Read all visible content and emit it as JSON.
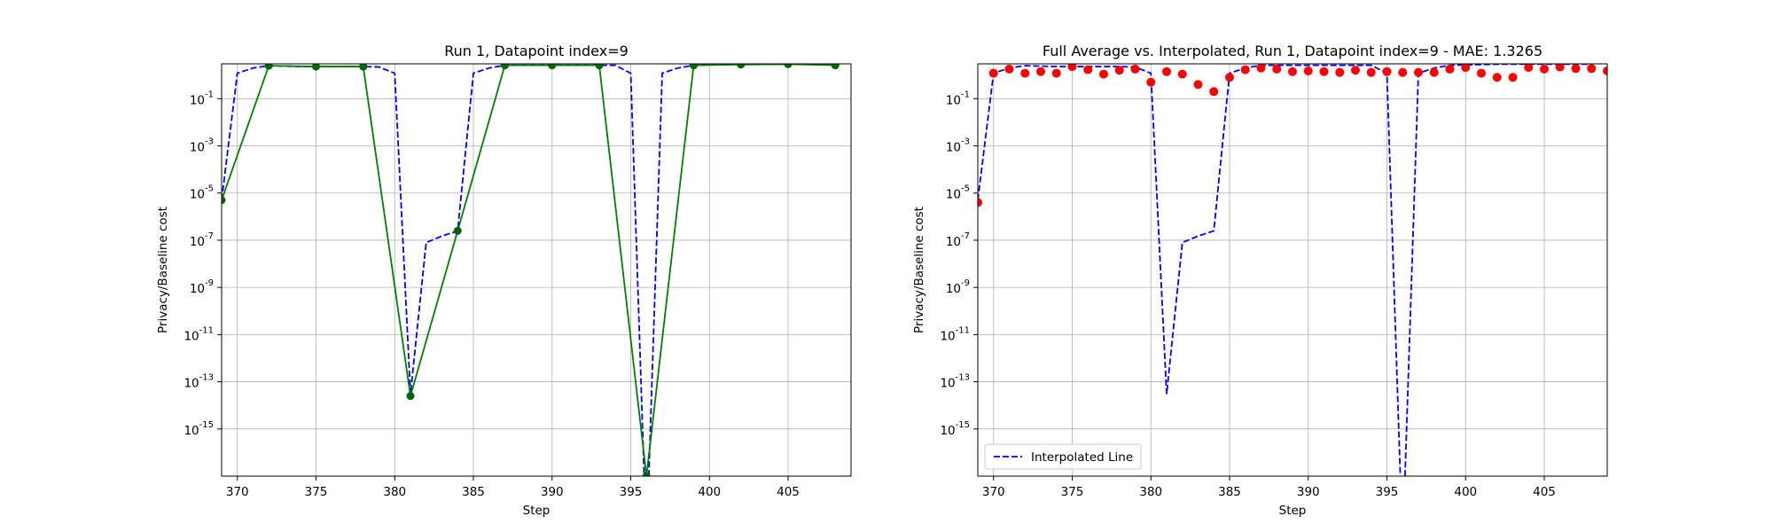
{
  "chart_data": [
    {
      "type": "line",
      "title": "Run 1, Datapoint index=9",
      "xlabel": "Step",
      "ylabel": "Privacy/Baseline cost",
      "yscale": "log",
      "xlim": [
        369,
        409
      ],
      "ylim": [
        1e-17,
        3
      ],
      "xticks": [
        370,
        375,
        380,
        385,
        390,
        395,
        400,
        405
      ],
      "xtick_labels": [
        "370",
        "375",
        "380",
        "385",
        "390",
        "395",
        "400",
        "405"
      ],
      "yticks": [
        1e-15,
        1e-13,
        1e-11,
        1e-09,
        1e-07,
        1e-05,
        0.001,
        0.1
      ],
      "ytick_labels": [
        "10^-15",
        "10^-13",
        "10^-11",
        "10^-9",
        "10^-7",
        "10^-5",
        "10^-3",
        "10^-1"
      ],
      "grid": true,
      "legend": "none",
      "series": [
        {
          "style": "dashed",
          "color": "#0000ff",
          "x": [
            369,
            370,
            371,
            372,
            373,
            374,
            375,
            376,
            377,
            378,
            379,
            380,
            381,
            382,
            383,
            384,
            385,
            386,
            387,
            388,
            389,
            390,
            391,
            392,
            393,
            394,
            395,
            396,
            397,
            398,
            399,
            400,
            401,
            402,
            403,
            404,
            405,
            406,
            407,
            408
          ],
          "y": [
            5e-06,
            1.2,
            2,
            2.5,
            2.4,
            2.3,
            2.3,
            2.3,
            2.3,
            2.3,
            2.2,
            1.2,
            3e-14,
            8e-08,
            1.5e-07,
            2.5e-07,
            1.2,
            2,
            2.6,
            2.6,
            2.6,
            2.6,
            2.6,
            2.6,
            2.6,
            2.6,
            1.2,
            1e-20,
            1.2,
            2,
            2.6,
            2.7,
            2.8,
            2.9,
            2.9,
            2.9,
            2.9,
            2.9,
            2.9,
            2.9
          ]
        },
        {
          "style": "solid",
          "marker": "circle",
          "color": "#008000",
          "marker_color": "#006400",
          "x": [
            369,
            372,
            375,
            378,
            381,
            384,
            387,
            390,
            393,
            396,
            399,
            402,
            405,
            408
          ],
          "y": [
            5e-06,
            2.5,
            2.3,
            2.3,
            2.5e-14,
            2.5e-07,
            2.6,
            2.6,
            2.6,
            1e-17,
            2.6,
            2.8,
            2.9,
            2.6
          ]
        }
      ]
    },
    {
      "type": "line",
      "title": "Full Average vs. Interpolated, Run 1, Datapoint index=9 - MAE: 1.3265",
      "xlabel": "Step",
      "ylabel": "Privacy/Baseline cost",
      "yscale": "log",
      "xlim": [
        369,
        409
      ],
      "ylim": [
        1e-17,
        3
      ],
      "xticks": [
        370,
        375,
        380,
        385,
        390,
        395,
        400,
        405
      ],
      "xtick_labels": [
        "370",
        "375",
        "380",
        "385",
        "390",
        "395",
        "400",
        "405"
      ],
      "yticks": [
        1e-15,
        1e-13,
        1e-11,
        1e-09,
        1e-07,
        1e-05,
        0.001,
        0.1
      ],
      "ytick_labels": [
        "10^-15",
        "10^-13",
        "10^-11",
        "10^-9",
        "10^-7",
        "10^-5",
        "10^-3",
        "10^-1"
      ],
      "grid": true,
      "legend": "lower left",
      "series": [
        {
          "name": "Interpolated Line",
          "style": "dashed",
          "color": "#0000ff",
          "x": [
            369,
            370,
            371,
            372,
            373,
            374,
            375,
            376,
            377,
            378,
            379,
            380,
            381,
            382,
            383,
            384,
            385,
            386,
            387,
            388,
            389,
            390,
            391,
            392,
            393,
            394,
            395,
            396,
            397,
            398,
            399,
            400,
            401,
            402,
            403,
            404,
            405,
            406,
            407,
            408
          ],
          "y": [
            5e-06,
            1.2,
            2,
            2.5,
            2.4,
            2.3,
            2.3,
            2.3,
            2.3,
            2.3,
            2.2,
            1.2,
            3e-14,
            8e-08,
            1.5e-07,
            2.5e-07,
            1.2,
            2,
            2.6,
            2.6,
            2.6,
            2.6,
            2.6,
            2.6,
            2.6,
            2.6,
            1.2,
            1e-20,
            1.2,
            2,
            2.6,
            2.7,
            2.8,
            2.9,
            2.9,
            2.9,
            2.9,
            2.9,
            2.9,
            2.9
          ]
        },
        {
          "style": "scatter",
          "marker": "circle",
          "color": "#ff0000",
          "x": [
            369,
            370,
            371,
            372,
            373,
            374,
            375,
            376,
            377,
            378,
            379,
            380,
            381,
            382,
            383,
            384,
            385,
            386,
            387,
            388,
            389,
            390,
            391,
            392,
            393,
            394,
            395,
            396,
            397,
            398,
            399,
            400,
            401,
            402,
            403,
            404,
            405,
            406,
            407,
            408,
            409
          ],
          "y": [
            4e-06,
            1.2,
            1.8,
            1.2,
            1.4,
            1.2,
            2.3,
            1.7,
            1.1,
            1.6,
            1.8,
            0.5,
            1.4,
            1.1,
            0.4,
            0.2,
            0.8,
            1.7,
            2,
            1.8,
            1.4,
            1.5,
            1.4,
            1.3,
            1.6,
            1.3,
            1.4,
            1.3,
            1.3,
            1.3,
            1.8,
            2.1,
            1.2,
            0.8,
            0.8,
            2.1,
            1.8,
            2.2,
            1.9,
            1.9,
            1.5
          ]
        }
      ]
    }
  ]
}
